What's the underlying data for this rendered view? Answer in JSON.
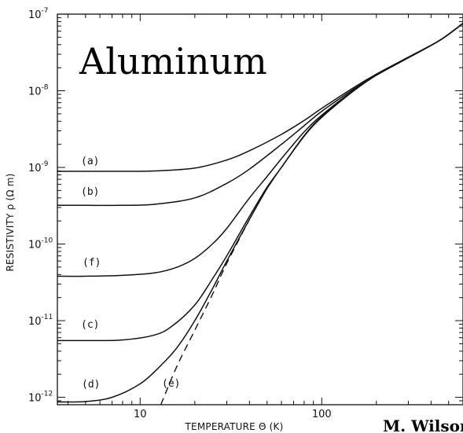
{
  "chart_data": {
    "type": "line",
    "title": "Aluminum",
    "xlabel": "TEMPERATURE Θ (K)",
    "ylabel": "RESISTIVITY ρ (Ω m)",
    "x_scale": "log",
    "y_scale": "log",
    "xlim": [
      3.5,
      600
    ],
    "ylim": [
      8e-13,
      1e-07
    ],
    "x_ticks": [
      {
        "value": 10,
        "label": "10"
      },
      {
        "value": 100,
        "label": "100"
      }
    ],
    "y_ticks": [
      {
        "value": 1e-07,
        "base": "10",
        "exp": "-7"
      },
      {
        "value": 1e-08,
        "base": "10",
        "exp": "-8"
      },
      {
        "value": 1e-09,
        "base": "10",
        "exp": "-9"
      },
      {
        "value": 1e-10,
        "base": "10",
        "exp": "-10"
      },
      {
        "value": 1e-11,
        "base": "10",
        "exp": "-11"
      },
      {
        "value": 1e-12,
        "base": "10",
        "exp": "-12"
      }
    ],
    "grid": false,
    "legend": "none",
    "series": [
      {
        "label": "(a)",
        "x": [
          3.5,
          5,
          8,
          12,
          20,
          30,
          40,
          60,
          80,
          100,
          150,
          200,
          300,
          450,
          600
        ],
        "y": [
          8.9e-10,
          8.9e-10,
          8.9e-10,
          9e-10,
          9.8e-10,
          1.25e-09,
          1.65e-09,
          2.7e-09,
          4.1e-09,
          5.9e-09,
          1.1e-08,
          1.65e-08,
          2.75e-08,
          4.6e-08,
          7.6e-08
        ]
      },
      {
        "label": "(b)",
        "x": [
          3.5,
          5,
          8,
          12,
          20,
          30,
          40,
          60,
          80,
          100,
          150,
          200,
          300,
          450,
          600
        ],
        "y": [
          3.2e-10,
          3.2e-10,
          3.2e-10,
          3.3e-10,
          4e-10,
          6.2e-10,
          9.5e-10,
          2e-09,
          3.5e-09,
          5.4e-09,
          1.05e-08,
          1.6e-08,
          2.7e-08,
          4.6e-08,
          7.6e-08
        ]
      },
      {
        "label": "(f)",
        "x": [
          3.5,
          5,
          8,
          12,
          16,
          20,
          25,
          30,
          40,
          50,
          60,
          80,
          100,
          150,
          200,
          300,
          450,
          600
        ],
        "y": [
          3.8e-11,
          3.8e-11,
          3.9e-11,
          4.2e-11,
          5e-11,
          6.5e-11,
          1e-10,
          1.6e-10,
          4e-10,
          7.6e-10,
          1.3e-09,
          2.9e-09,
          4.8e-09,
          1.02e-08,
          1.6e-08,
          2.7e-08,
          4.6e-08,
          7.6e-08
        ]
      },
      {
        "label": "(c)",
        "x": [
          3.5,
          5,
          8,
          12,
          15,
          20,
          25,
          30,
          40,
          50,
          60,
          80,
          100,
          150,
          200,
          300,
          450,
          600
        ],
        "y": [
          5.5e-12,
          5.5e-12,
          5.6e-12,
          6.5e-12,
          8.5e-12,
          1.6e-11,
          3.5e-11,
          7e-11,
          2.3e-10,
          5.5e-10,
          1e-09,
          2.6e-09,
          4.6e-09,
          1e-08,
          1.6e-08,
          2.7e-08,
          4.6e-08,
          7.6e-08
        ]
      },
      {
        "label": "(d)",
        "x": [
          3.5,
          5,
          7,
          10,
          13,
          16,
          20,
          25,
          30,
          40,
          50,
          60,
          80,
          100,
          150,
          200,
          300,
          450,
          600
        ],
        "y": [
          8.7e-13,
          8.8e-13,
          1e-12,
          1.5e-12,
          2.6e-12,
          4.5e-12,
          1e-11,
          2.6e-11,
          6e-11,
          2.1e-10,
          5.3e-10,
          1e-09,
          2.55e-09,
          4.5e-09,
          1e-08,
          1.6e-08,
          2.7e-08,
          4.6e-08,
          7.6e-08
        ]
      },
      {
        "label": "(e)",
        "style": "dashed",
        "x": [
          13,
          16,
          20,
          25,
          30,
          40
        ],
        "y": [
          8e-13,
          2.6e-12,
          7.5e-12,
          2.2e-11,
          5.6e-11,
          2.1e-10
        ]
      }
    ],
    "annotations": [
      "(a)",
      "(b)",
      "(f)",
      "(c)",
      "(d)",
      "(e)"
    ]
  },
  "credit": "M. Wilson"
}
